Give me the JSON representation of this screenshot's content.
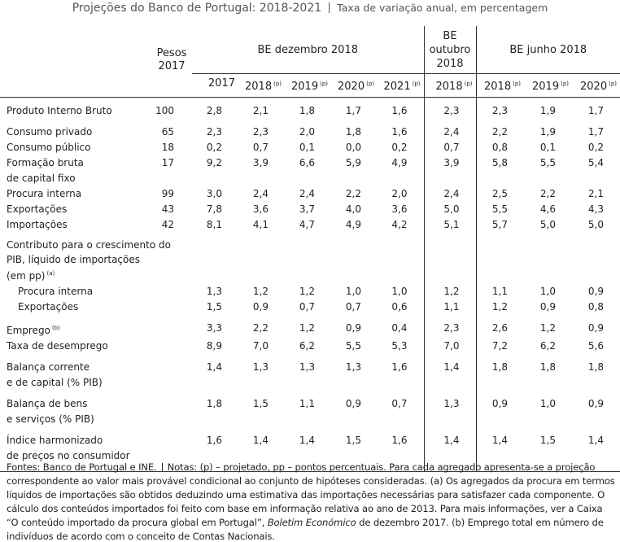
{
  "header": {
    "title": "Projeções do Banco de Portugal: 2018-2021",
    "subtitle": "Taxa de variação anual, em percentagem"
  },
  "table": {
    "weights_header": "Pesos\n2017",
    "column_groups": [
      {
        "label": "BE dezembro 2018",
        "columns": [
          {
            "year": "2017"
          },
          {
            "year": "2018",
            "note": "(p)"
          },
          {
            "year": "2019",
            "note": "(p)"
          },
          {
            "year": "2020",
            "note": "(p)"
          },
          {
            "year": "2021",
            "note": "(p)"
          }
        ]
      },
      {
        "label": "BE\noutubro\n2018",
        "columns": [
          {
            "year": "2018",
            "note": "(p)"
          }
        ]
      },
      {
        "label": "BE junho 2018",
        "columns": [
          {
            "year": "2018",
            "note": "(p)"
          },
          {
            "year": "2019",
            "note": "(p)"
          },
          {
            "year": "2020",
            "note": "(p)"
          }
        ]
      }
    ],
    "groups": [
      {
        "rows": [
          {
            "label": "Produto Interno Bruto",
            "weight": "100",
            "values": [
              "2,8",
              "2,1",
              "1,8",
              "1,7",
              "1,6",
              "2,3",
              "2,3",
              "1,9",
              "1,7"
            ]
          }
        ]
      },
      {
        "rows": [
          {
            "label": "Consumo privado",
            "weight": "65",
            "values": [
              "2,3",
              "2,3",
              "2,0",
              "1,8",
              "1,6",
              "2,4",
              "2,2",
              "1,9",
              "1,7"
            ]
          },
          {
            "label": "Consumo público",
            "weight": "18",
            "values": [
              "0,2",
              "0,7",
              "0,1",
              "0,0",
              "0,2",
              "0,7",
              "0,8",
              "0,1",
              "0,2"
            ]
          },
          {
            "label": "Formação bruta\nde capital fixo",
            "weight": "17",
            "values": [
              "9,2",
              "3,9",
              "6,6",
              "5,9",
              "4,9",
              "3,9",
              "5,8",
              "5,5",
              "5,4"
            ]
          },
          {
            "label": "Procura interna",
            "weight": "99",
            "values": [
              "3,0",
              "2,4",
              "2,4",
              "2,2",
              "2,0",
              "2,4",
              "2,5",
              "2,2",
              "2,1"
            ]
          },
          {
            "label": "Exportações",
            "weight": "43",
            "values": [
              "7,8",
              "3,6",
              "3,7",
              "4,0",
              "3,6",
              "5,0",
              "5,5",
              "4,6",
              "4,3"
            ]
          },
          {
            "label": "Importações",
            "weight": "42",
            "values": [
              "8,1",
              "4,1",
              "4,7",
              "4,9",
              "4,2",
              "5,1",
              "5,7",
              "5,0",
              "5,0"
            ]
          }
        ]
      },
      {
        "heading": "Contributo para o crescimento do\nPIB, líquido de importações\n(em pp)",
        "note": "(a)",
        "rows": [
          {
            "label": "Procura interna",
            "values": [
              "1,3",
              "1,2",
              "1,2",
              "1,0",
              "1,0",
              "1,2",
              "1,1",
              "1,0",
              "0,9"
            ]
          },
          {
            "label": "Exportações",
            "values": [
              "1,5",
              "0,9",
              "0,7",
              "0,7",
              "0,6",
              "1,1",
              "1,2",
              "0,9",
              "0,8"
            ]
          }
        ]
      },
      {
        "rows": [
          {
            "label": "Emprego",
            "note": "(b)",
            "values": [
              "3,3",
              "2,2",
              "1,2",
              "0,9",
              "0,4",
              "2,3",
              "2,6",
              "1,2",
              "0,9"
            ]
          },
          {
            "label": "Taxa de desemprego",
            "values": [
              "8,9",
              "7,0",
              "6,2",
              "5,5",
              "5,3",
              "7,0",
              "7,2",
              "6,2",
              "5,6"
            ]
          }
        ]
      },
      {
        "rows": [
          {
            "label": "Balança corrente\ne de capital (% PIB)",
            "values": [
              "1,4",
              "1,3",
              "1,3",
              "1,3",
              "1,6",
              "1,4",
              "1,8",
              "1,8",
              "1,8"
            ]
          }
        ]
      },
      {
        "rows": [
          {
            "label": "Balança de bens\ne serviços (% PIB)",
            "values": [
              "1,8",
              "1,5",
              "1,1",
              "0,9",
              "0,7",
              "1,3",
              "0,9",
              "1,0",
              "0,9"
            ]
          }
        ]
      },
      {
        "rows": [
          {
            "label": "Índice harmonizado\nde preços no consumidor",
            "values": [
              "1,6",
              "1,4",
              "1,4",
              "1,5",
              "1,6",
              "1,4",
              "1,4",
              "1,5",
              "1,4"
            ]
          }
        ]
      }
    ]
  },
  "footnote": {
    "sources": "Fontes: Banco de Portugal e INE.",
    "notes": "Notas: (p) – projetado, pp – pontos percentuais. Para cada agregado apresenta-se a projeção correspondente ao valor mais provável condicional ao conjunto de hipóteses consideradas. (a) Os agregados da procura em termos líquidos de importações são obtidos deduzindo uma estimativa das importações necessárias para satisfazer cada componente. O cálculo dos conteúdos importados foi feito com base em informação relativa ao ano de 2013. Para mais informações, ver a Caixa “O conteúdo importado da procura global em Portugal”, ",
    "publication": "Boletim Económico",
    "notes_end": " de dezembro 2017. (b) Emprego total em número de indivíduos de acordo com o conceito de Contas Nacionais."
  }
}
